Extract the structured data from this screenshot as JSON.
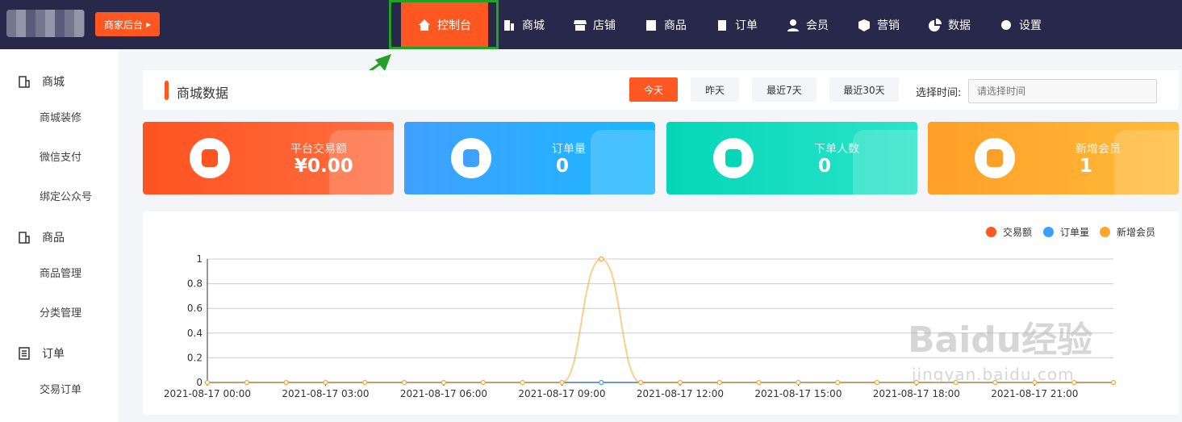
{
  "header": {
    "biz_button": "商家后台",
    "nav": [
      {
        "label": "控制台",
        "icon": "home-icon",
        "active": true
      },
      {
        "label": "商城",
        "icon": "building-icon"
      },
      {
        "label": "店铺",
        "icon": "store-icon"
      },
      {
        "label": "商品",
        "icon": "bag-icon"
      },
      {
        "label": "订单",
        "icon": "clipboard-icon"
      },
      {
        "label": "会员",
        "icon": "user-icon"
      },
      {
        "label": "营销",
        "icon": "cube-icon"
      },
      {
        "label": "数据",
        "icon": "pie-icon"
      },
      {
        "label": "设置",
        "icon": "gear-icon"
      }
    ]
  },
  "sidebar": {
    "groups": [
      {
        "label": "商城",
        "icon": "building-icon",
        "items": [
          "商城装修",
          "微信支付",
          "绑定公众号"
        ]
      },
      {
        "label": "商品",
        "icon": "bag-icon",
        "items": [
          "商品管理",
          "分类管理"
        ]
      },
      {
        "label": "订单",
        "icon": "list-icon",
        "items": [
          "交易订单"
        ]
      }
    ]
  },
  "main": {
    "title": "商城数据",
    "filters": [
      "今天",
      "昨天",
      "最近7天",
      "最近30天"
    ],
    "active_filter": "今天",
    "time_label": "选择时间:",
    "time_placeholder": "请选择时间",
    "cards": [
      {
        "label": "平台交易额",
        "value": "¥0.00",
        "icon": "money-bag-icon",
        "color1": "#ff5320",
        "color2": "#ff6e40"
      },
      {
        "label": "订单量",
        "value": "0",
        "icon": "clipboard-icon",
        "color1": "#40a0ff",
        "color2": "#1ab8ff"
      },
      {
        "label": "下单人数",
        "value": "0",
        "icon": "cart-icon",
        "color1": "#05d6b8",
        "color2": "#2ae4c8"
      },
      {
        "label": "新增会员",
        "value": "1",
        "icon": "diamond-icon",
        "color1": "#ff9f28",
        "color2": "#ffbb38"
      }
    ]
  },
  "chart_data": {
    "type": "line",
    "x": [
      "2021-08-17 00:00",
      "2021-08-17 01:00",
      "2021-08-17 02:00",
      "2021-08-17 03:00",
      "2021-08-17 04:00",
      "2021-08-17 05:00",
      "2021-08-17 06:00",
      "2021-08-17 07:00",
      "2021-08-17 08:00",
      "2021-08-17 09:00",
      "2021-08-17 10:00",
      "2021-08-17 11:00",
      "2021-08-17 12:00",
      "2021-08-17 13:00",
      "2021-08-17 14:00",
      "2021-08-17 15:00",
      "2021-08-17 16:00",
      "2021-08-17 17:00",
      "2021-08-17 18:00",
      "2021-08-17 19:00",
      "2021-08-17 20:00",
      "2021-08-17 21:00",
      "2021-08-17 22:00",
      "2021-08-17 23:00"
    ],
    "xticks": [
      "2021-08-17 00:00",
      "2021-08-17 03:00",
      "2021-08-17 06:00",
      "2021-08-17 09:00",
      "2021-08-17 12:00",
      "2021-08-17 15:00",
      "2021-08-17 18:00",
      "2021-08-17 21:00"
    ],
    "yticks": [
      "0",
      "0.2",
      "0.4",
      "0.6",
      "0.8",
      "1"
    ],
    "ylim": [
      0,
      1
    ],
    "grid": true,
    "legend_position": "top-right",
    "series": [
      {
        "name": "交易额",
        "color": "#ff5722",
        "values": [
          0,
          0,
          0,
          0,
          0,
          0,
          0,
          0,
          0,
          0,
          0,
          0,
          0,
          0,
          0,
          0,
          0,
          0,
          0,
          0,
          0,
          0,
          0,
          0
        ]
      },
      {
        "name": "订单量",
        "color": "#3aa0ff",
        "values": [
          0,
          0,
          0,
          0,
          0,
          0,
          0,
          0,
          0,
          0,
          0,
          0,
          0,
          0,
          0,
          0,
          0,
          0,
          0,
          0,
          0,
          0,
          0,
          0
        ]
      },
      {
        "name": "新增会员",
        "color": "#ffa42c",
        "values": [
          0,
          0,
          0,
          0,
          0,
          0,
          0,
          0,
          0,
          0,
          1,
          0,
          0,
          0,
          0,
          0,
          0,
          0,
          0,
          0,
          0,
          0,
          0,
          0
        ]
      }
    ]
  },
  "watermark": {
    "text": "Baidu经验",
    "url": "jingyan.baidu.com"
  }
}
